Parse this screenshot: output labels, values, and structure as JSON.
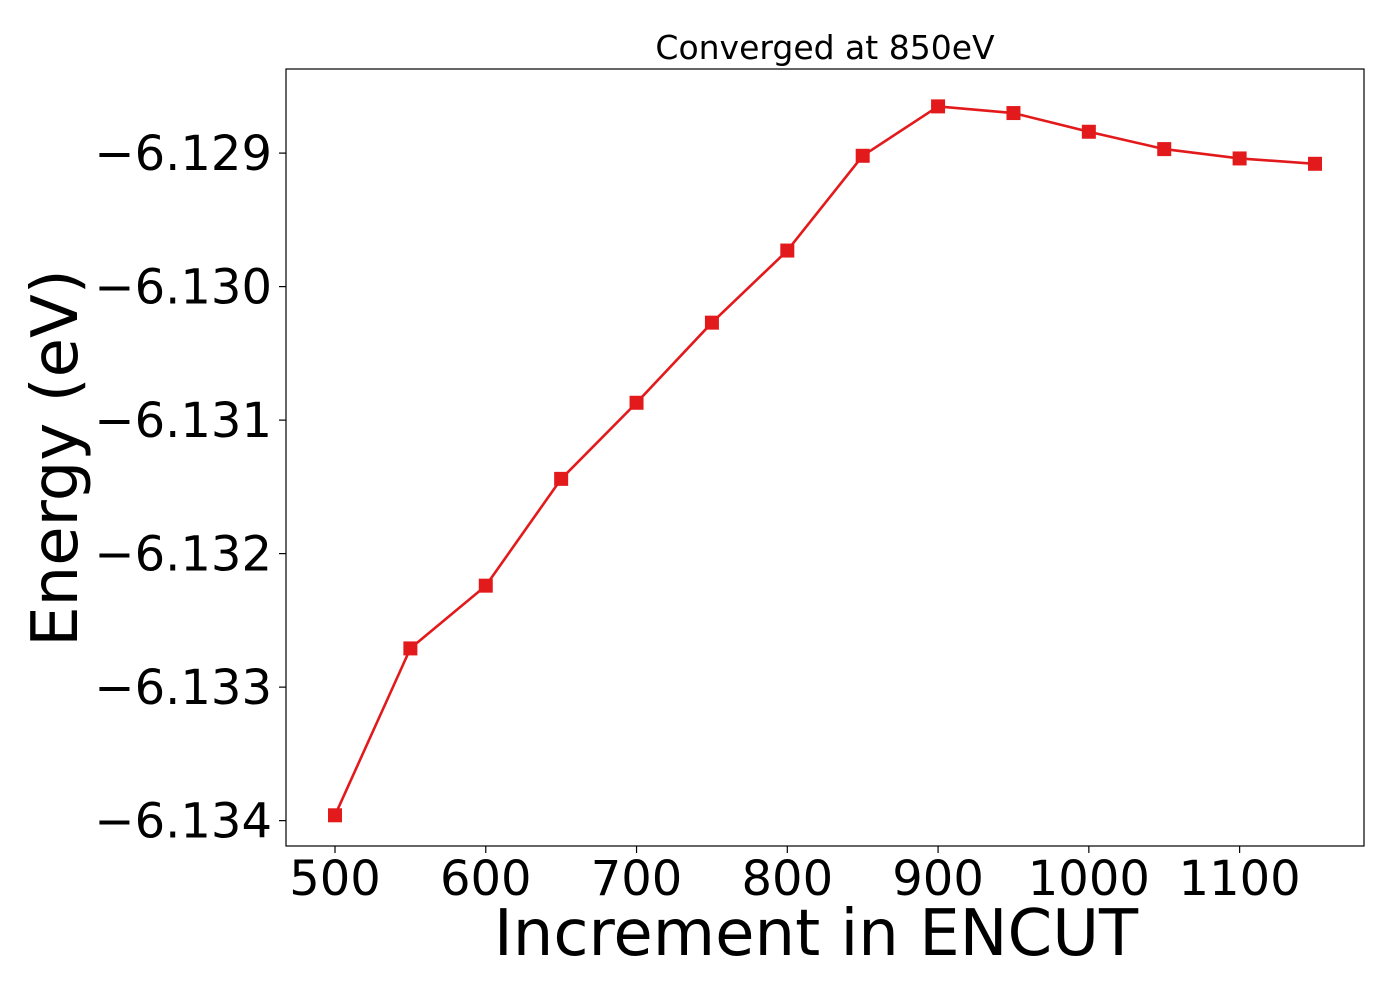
{
  "chart_data": {
    "type": "line",
    "title": "Converged at 850eV",
    "xlabel": "Increment in ENCUT",
    "ylabel": "Energy (eV)",
    "x": [
      500,
      550,
      600,
      650,
      700,
      750,
      800,
      850,
      900,
      950,
      1000,
      1050,
      1100,
      1150
    ],
    "series": [
      {
        "values": [
          -6.13396,
          -6.13271,
          -6.13224,
          -6.13144,
          -6.13087,
          -6.13027,
          -6.12973,
          -6.12902,
          -6.12865,
          -6.1287,
          -6.12884,
          -6.12897,
          -6.12904,
          -6.12908
        ],
        "color": "#e31a1c",
        "marker": "square"
      }
    ],
    "xticks": [
      500,
      600,
      700,
      800,
      900,
      1000,
      1100
    ],
    "xtick_labels": [
      "500",
      "600",
      "700",
      "800",
      "900",
      "1000",
      "1100"
    ],
    "yticks": [
      -6.134,
      -6.133,
      -6.132,
      -6.131,
      -6.13,
      -6.129
    ],
    "ytick_labels": [
      "−6.134",
      "−6.133",
      "−6.132",
      "−6.131",
      "−6.130",
      "−6.129"
    ],
    "xlim": [
      467.5,
      1182.5
    ],
    "ylim": [
      -6.13419,
      -6.12837
    ],
    "grid": false,
    "legend": "none"
  }
}
